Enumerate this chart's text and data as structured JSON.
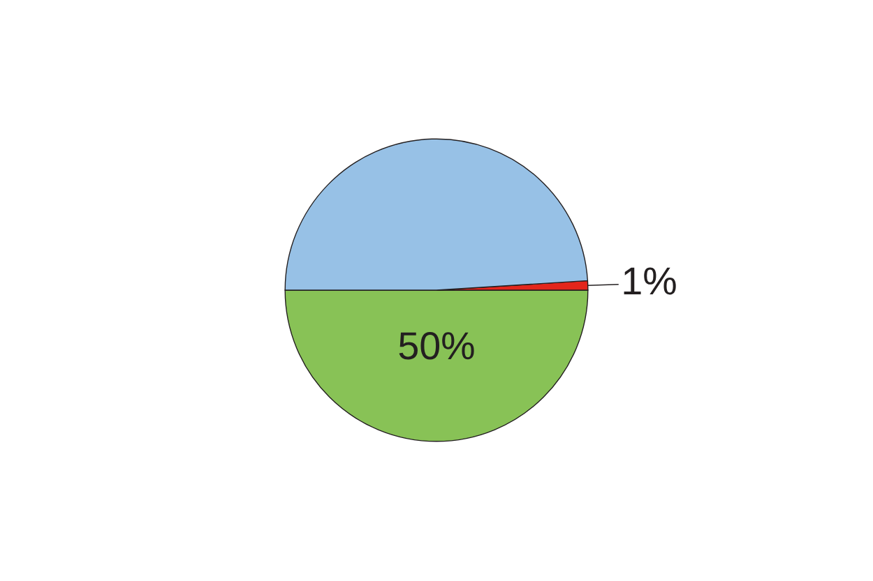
{
  "chart_data": {
    "type": "pie",
    "categories": [
      null,
      null,
      null
    ],
    "values": [
      50,
      1,
      49
    ],
    "colors": [
      "#88c256",
      "#e3261c",
      "#97c1e6"
    ],
    "value_labels": [
      "50%",
      "1%",
      null
    ],
    "legend": false
  }
}
